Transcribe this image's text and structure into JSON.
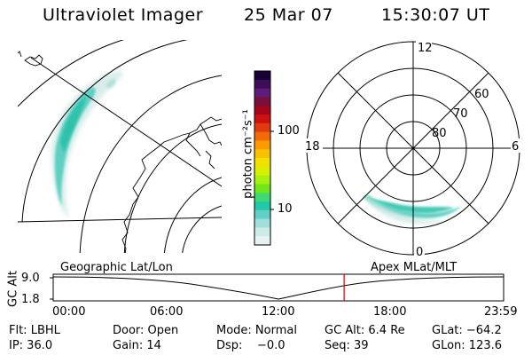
{
  "header": {
    "title": "Ultraviolet Imager",
    "date": "25 Mar 07",
    "time": "15:30:07 UT"
  },
  "colorbar": {
    "unit_label": "photon cm⁻²s⁻¹",
    "ticks": [
      "100",
      "10"
    ],
    "colors": [
      "#1a0033",
      "#3d0c57",
      "#5e1c7a",
      "#7a0f3a",
      "#a5051a",
      "#cc1010",
      "#e23a10",
      "#f26a08",
      "#fa9a00",
      "#f8c000",
      "#f2e000",
      "#d8f000",
      "#a8f010",
      "#70e818",
      "#40d870",
      "#22c8a8",
      "#60d0c8",
      "#a0e0dc",
      "#cde9e8",
      "#e6f2f2"
    ]
  },
  "polar_plot": {
    "mlt_labels": [
      "12",
      "18",
      "6",
      "0"
    ],
    "lat_labels": [
      "60",
      "70",
      "80"
    ]
  },
  "timeline": {
    "left_label": "Geographic Lat/Lon",
    "right_label": "Apex MLat/MLT",
    "axis_title": "GC Alt",
    "y_top": "9.0",
    "y_bottom": "1.8",
    "x_ticks": [
      "00:00",
      "06:00",
      "12:00",
      "18:00",
      "23:59"
    ],
    "current_time_marker": "15:30",
    "marker_color": "#d00000"
  },
  "footer": [
    [
      "Flt: LBHL",
      "Door: Open",
      "Mode: Normal",
      "GC Alt: 6.4 Re",
      "GLat: −64.2"
    ],
    [
      "IP: 36.0",
      "Gain: 14",
      "Dsp:    −0.0",
      "Seq: 39",
      "GLon: 123.6"
    ]
  ]
}
